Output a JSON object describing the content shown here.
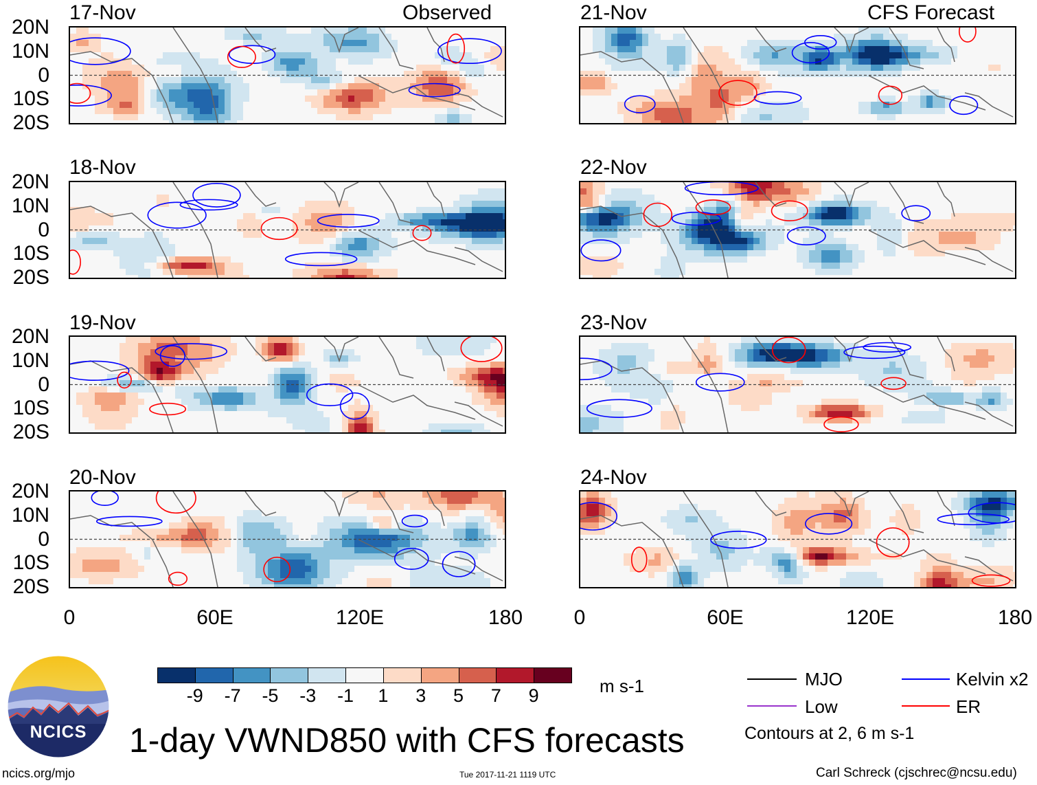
{
  "figure_title": "1-day VWND850 with CFS forecasts",
  "header_labels": {
    "observed": "Observed",
    "forecast": "CFS Forecast"
  },
  "footer": {
    "left": "ncics.org/mjo",
    "center": "Tue 2017-11-21 1119 UTC",
    "right": "Carl Schreck (cjschrec@ncsu.edu)"
  },
  "logo_text": "NCICS",
  "colors": {
    "mjo": "#000000",
    "low": "#9933cc",
    "kelvin": "#0000ff",
    "er": "#ff0000",
    "colorbar": [
      "#08306b",
      "#2166ac",
      "#4393c3",
      "#92c5de",
      "#d1e5f0",
      "#f7f7f7",
      "#fddbc7",
      "#f4a582",
      "#d6604d",
      "#b2182b",
      "#67001f"
    ]
  },
  "chart_data": {
    "type": "heatmap",
    "variable": "VWND850 anomaly",
    "units": "m s-1",
    "colorbar_ticks": [
      "-9",
      "-7",
      "-5",
      "-3",
      "-1",
      "1",
      "3",
      "5",
      "7",
      "9"
    ],
    "colorbar_levels": [
      -9,
      -7,
      -5,
      -3,
      -1,
      1,
      3,
      5,
      7,
      9
    ],
    "xlim": [
      0,
      180
    ],
    "ylim": [
      -20,
      20
    ],
    "x_ticks": [
      "0",
      "60E",
      "120E",
      "180"
    ],
    "y_ticks": [
      "20N",
      "10N",
      "0",
      "10S",
      "20S"
    ],
    "contour_note": "Contours at 2, 6 m s-1",
    "legend": [
      {
        "name": "MJO",
        "color": "#000000"
      },
      {
        "name": "Low",
        "color": "#9933cc"
      },
      {
        "name": "Kelvin x2",
        "color": "#0000ff"
      },
      {
        "name": "ER",
        "color": "#ff0000"
      }
    ],
    "panels": [
      {
        "date": "17-Nov",
        "source": "Observed",
        "seed": 17
      },
      {
        "date": "18-Nov",
        "source": "Observed",
        "seed": 18
      },
      {
        "date": "19-Nov",
        "source": "Observed",
        "seed": 19
      },
      {
        "date": "20-Nov",
        "source": "Observed",
        "seed": 20
      },
      {
        "date": "21-Nov",
        "source": "CFS Forecast",
        "seed": 21
      },
      {
        "date": "22-Nov",
        "source": "CFS Forecast",
        "seed": 22
      },
      {
        "date": "23-Nov",
        "source": "CFS Forecast",
        "seed": 23
      },
      {
        "date": "24-Nov",
        "source": "CFS Forecast",
        "seed": 24
      }
    ]
  }
}
